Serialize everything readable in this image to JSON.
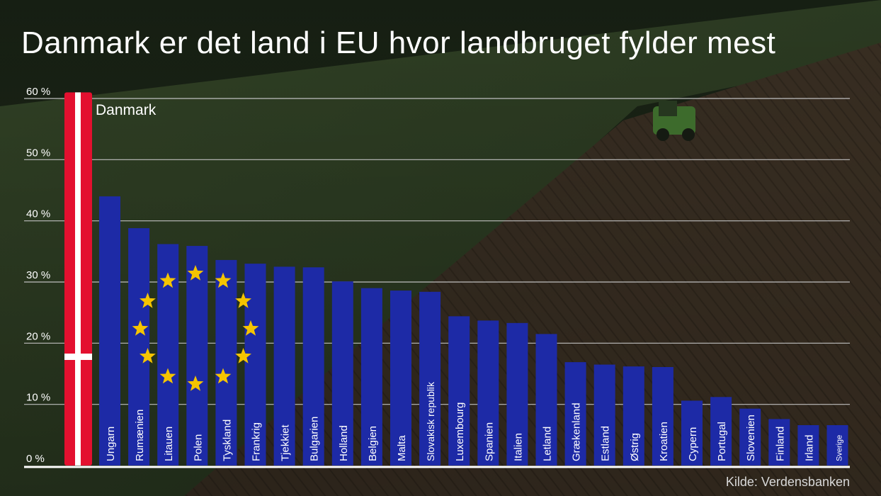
{
  "chart_data": {
    "type": "bar",
    "title": "Danmark er det land i EU hvor landbruget fylder mest",
    "xlabel": "",
    "ylabel": "",
    "ylim": [
      0,
      60
    ],
    "yticks": [
      0,
      10,
      20,
      30,
      40,
      50,
      60
    ],
    "ytick_labels": [
      "0 %",
      "10 %",
      "20 %",
      "30 %",
      "40 %",
      "50 %",
      "60 %"
    ],
    "grid": true,
    "highlight_label": "Danmark",
    "categories": [
      "Danmark",
      "Ungarn",
      "Rumænien",
      "Litauen",
      "Polen",
      "Tyskland",
      "Frankrig",
      "Tjekkiet",
      "Bulgarien",
      "Holland",
      "Belgien",
      "Malta",
      "Slovakisk republik",
      "Luxembourg",
      "Spanien",
      "Italien",
      "Letland",
      "Grækenland",
      "Estland",
      "Østrig",
      "Kroatien",
      "Cypern",
      "Portugal",
      "Slovenien",
      "Finland",
      "Irland",
      "Sverige"
    ],
    "values": [
      61,
      44,
      38.8,
      36.2,
      35.9,
      33.6,
      33,
      32.5,
      32.4,
      30.1,
      29,
      28.6,
      28.4,
      24.4,
      23.7,
      23.3,
      21.5,
      16.9,
      16.5,
      16.2,
      16.1,
      10.6,
      11.2,
      9.3,
      7.6,
      6.6,
      6.6
    ],
    "colors": {
      "eu_bar": "#1d2aa6",
      "eu_star": "#f5c400",
      "danish_red": "#e3102f",
      "danish_white": "#ffffff",
      "gridline": "#bfbfbf"
    }
  },
  "source": "Kilde: Verdensbanken"
}
